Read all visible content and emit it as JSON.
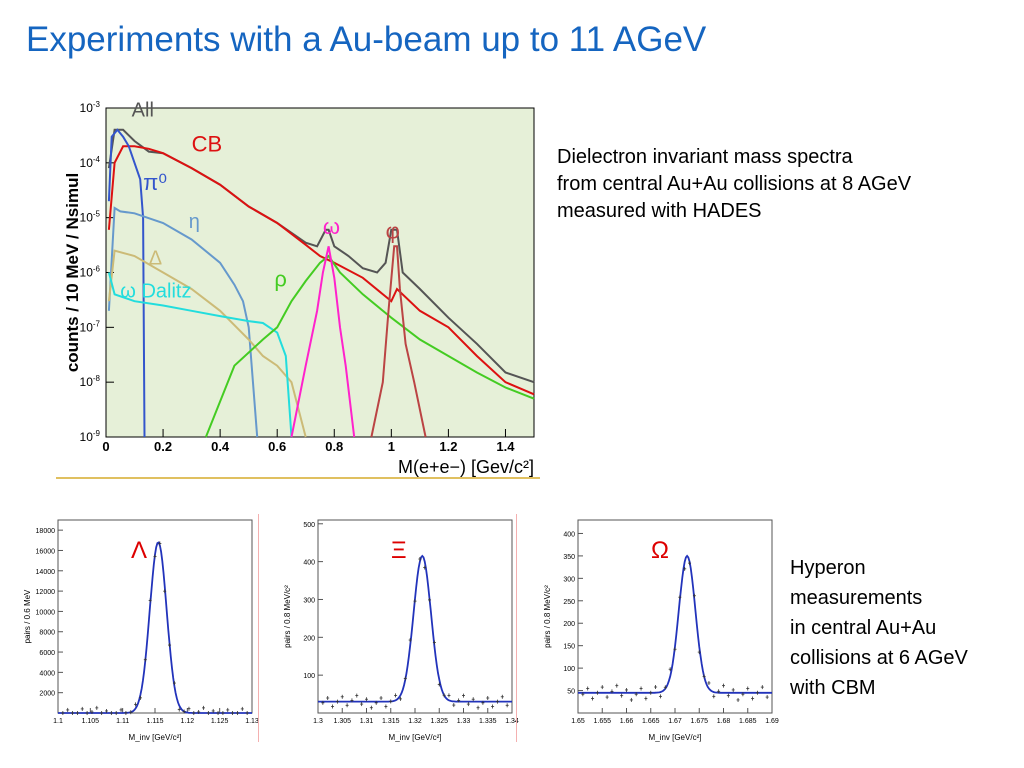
{
  "slide": {
    "title": "Experiments with a Au-beam up to  11 AGeV",
    "dielectron_caption": [
      "Dielectron invariant mass spectra",
      "from central Au+Au collisions at 8 AGeV",
      "measured with HADES"
    ],
    "hyperon_caption": [
      "Hyperon",
      "measurements",
      "in central Au+Au",
      "collisions at 6 AGeV",
      "with CBM"
    ]
  },
  "colors": {
    "title": "#1565c0",
    "hyp_line": "#2233bb",
    "hyp_label": "#dd0000"
  },
  "chart_data": [
    {
      "id": "dielectron",
      "type": "line",
      "xlabel": "M(e+e−) [Gev/c²]",
      "ylabel": "counts / 10 MeV / Nsimul",
      "xlim": [
        0,
        1.5
      ],
      "ylim": [
        1e-09,
        0.001
      ],
      "yscale": "log",
      "x_ticks": [
        "0",
        "0.2",
        "0.4",
        "0.6",
        "0.8",
        "1",
        "1.2",
        "1.4"
      ],
      "y_ticks": [
        {
          "m": "10",
          "e": "-3"
        },
        {
          "m": "10",
          "e": "-4"
        },
        {
          "m": "10",
          "e": "-5"
        },
        {
          "m": "10",
          "e": "-6"
        },
        {
          "m": "10",
          "e": "-7"
        },
        {
          "m": "10",
          "e": "-8"
        },
        {
          "m": "10",
          "e": "-9"
        }
      ],
      "labels": [
        "All",
        "CB",
        "π⁰",
        "η",
        "Δ",
        "ω Dalitz",
        "ρ",
        "ω",
        "φ"
      ],
      "series": [
        {
          "name": "All",
          "color": "#555555",
          "points": [
            [
              0.01,
              8e-05
            ],
            [
              0.03,
              0.0004
            ],
            [
              0.06,
              0.0004
            ],
            [
              0.1,
              0.00025
            ],
            [
              0.15,
              0.00016
            ],
            [
              0.2,
              0.00015
            ],
            [
              0.3,
              8e-05
            ],
            [
              0.4,
              4e-05
            ],
            [
              0.5,
              1.6e-05
            ],
            [
              0.6,
              8e-06
            ],
            [
              0.7,
              3.5e-06
            ],
            [
              0.74,
              3e-06
            ],
            [
              0.77,
              6e-06
            ],
            [
              0.78,
              6e-06
            ],
            [
              0.8,
              3e-06
            ],
            [
              0.85,
              2e-06
            ],
            [
              0.9,
              1.2e-06
            ],
            [
              0.95,
              1e-06
            ],
            [
              0.98,
              1.5e-06
            ],
            [
              1.0,
              6e-06
            ],
            [
              1.02,
              6e-06
            ],
            [
              1.04,
              1e-06
            ],
            [
              1.1,
              5e-07
            ],
            [
              1.2,
              1.5e-07
            ],
            [
              1.3,
              5e-08
            ],
            [
              1.4,
              1.5e-08
            ],
            [
              1.5,
              1e-08
            ]
          ]
        },
        {
          "name": "CB",
          "color": "#dd1111",
          "points": [
            [
              0.01,
              6e-06
            ],
            [
              0.03,
              0.0001
            ],
            [
              0.06,
              0.0002
            ],
            [
              0.1,
              0.0002
            ],
            [
              0.15,
              0.00018
            ],
            [
              0.2,
              0.00015
            ],
            [
              0.3,
              8e-05
            ],
            [
              0.4,
              4e-05
            ],
            [
              0.5,
              1.6e-05
            ],
            [
              0.6,
              8e-06
            ],
            [
              0.7,
              3.2e-06
            ],
            [
              0.75,
              2e-06
            ],
            [
              0.8,
              1.5e-06
            ],
            [
              0.9,
              8e-07
            ],
            [
              1.0,
              3e-07
            ],
            [
              1.02,
              5e-07
            ],
            [
              1.1,
              2e-07
            ],
            [
              1.2,
              1e-07
            ],
            [
              1.3,
              3e-08
            ],
            [
              1.4,
              1e-08
            ],
            [
              1.5,
              6e-09
            ]
          ]
        },
        {
          "name": "π⁰",
          "color": "#3355cc",
          "points": [
            [
              0.01,
              2e-05
            ],
            [
              0.02,
              0.0003
            ],
            [
              0.04,
              0.0004
            ],
            [
              0.06,
              0.0003
            ],
            [
              0.08,
              0.0002
            ],
            [
              0.1,
              0.0001
            ],
            [
              0.12,
              5e-05
            ],
            [
              0.13,
              1e-05
            ],
            [
              0.135,
              1e-09
            ]
          ]
        },
        {
          "name": "η",
          "color": "#6699cc",
          "points": [
            [
              0.01,
              2e-07
            ],
            [
              0.03,
              1.5e-05
            ],
            [
              0.05,
              1.3e-05
            ],
            [
              0.1,
              1.2e-05
            ],
            [
              0.2,
              8e-06
            ],
            [
              0.3,
              4e-06
            ],
            [
              0.4,
              1.5e-06
            ],
            [
              0.45,
              6e-07
            ],
            [
              0.48,
              3e-07
            ],
            [
              0.5,
              1e-07
            ],
            [
              0.53,
              1e-09
            ]
          ]
        },
        {
          "name": "Δ",
          "color": "#ccbb77",
          "points": [
            [
              0.01,
              3e-07
            ],
            [
              0.03,
              2.5e-06
            ],
            [
              0.1,
              2e-06
            ],
            [
              0.2,
              1e-06
            ],
            [
              0.3,
              5e-07
            ],
            [
              0.4,
              2e-07
            ],
            [
              0.5,
              6e-08
            ],
            [
              0.55,
              3e-08
            ],
            [
              0.6,
              2e-08
            ],
            [
              0.65,
              1e-08
            ],
            [
              0.7,
              1e-09
            ]
          ]
        },
        {
          "name": "ω Dalitz",
          "color": "#22dddd",
          "points": [
            [
              0.01,
              1e-06
            ],
            [
              0.03,
              4e-07
            ],
            [
              0.1,
              3e-07
            ],
            [
              0.2,
              2.5e-07
            ],
            [
              0.3,
              2e-07
            ],
            [
              0.4,
              1.6e-07
            ],
            [
              0.5,
              1.3e-07
            ],
            [
              0.55,
              1.2e-07
            ],
            [
              0.6,
              8e-08
            ],
            [
              0.63,
              3e-08
            ],
            [
              0.65,
              1e-09
            ]
          ]
        },
        {
          "name": "ρ",
          "color": "#44cc22",
          "points": [
            [
              0.35,
              1e-09
            ],
            [
              0.45,
              2e-08
            ],
            [
              0.55,
              6e-08
            ],
            [
              0.6,
              1e-07
            ],
            [
              0.65,
              3e-07
            ],
            [
              0.7,
              7e-07
            ],
            [
              0.75,
              1.5e-06
            ],
            [
              0.78,
              2e-06
            ],
            [
              0.82,
              1e-06
            ],
            [
              0.9,
              4e-07
            ],
            [
              1.0,
              1.5e-07
            ],
            [
              1.1,
              6e-08
            ],
            [
              1.2,
              3e-08
            ],
            [
              1.3,
              1.5e-08
            ],
            [
              1.4,
              8e-09
            ],
            [
              1.5,
              5e-09
            ]
          ]
        },
        {
          "name": "ω",
          "color": "#ff22cc",
          "points": [
            [
              0.65,
              1e-09
            ],
            [
              0.7,
              2e-08
            ],
            [
              0.74,
              2e-07
            ],
            [
              0.76,
              1e-06
            ],
            [
              0.78,
              3e-06
            ],
            [
              0.8,
              8e-07
            ],
            [
              0.82,
              1e-07
            ],
            [
              0.84,
              2e-08
            ],
            [
              0.87,
              1e-09
            ]
          ]
        },
        {
          "name": "φ",
          "color": "#bb4444",
          "points": [
            [
              0.93,
              1e-09
            ],
            [
              0.97,
              1e-08
            ],
            [
              0.99,
              2e-07
            ],
            [
              1.01,
              3e-06
            ],
            [
              1.02,
              3e-06
            ],
            [
              1.03,
              5e-07
            ],
            [
              1.05,
              5e-08
            ],
            [
              1.08,
              1e-08
            ],
            [
              1.12,
              1e-09
            ]
          ]
        }
      ]
    },
    {
      "id": "lambda",
      "type": "line",
      "label": "Λ",
      "xlabel": "M_inv [GeV/c²]",
      "ylabel": "pairs / 0.6 MeV",
      "xlim": [
        1.1,
        1.13
      ],
      "ylim": [
        0,
        19000
      ],
      "x_ticks": [
        "1.1",
        "1.105",
        "1.11",
        "1.115",
        "1.12",
        "1.125",
        "1.13"
      ],
      "y_ticks": [
        "2000",
        "4000",
        "6000",
        "8000",
        "10000",
        "12000",
        "14000",
        "16000",
        "18000"
      ],
      "peak": {
        "mean": 1.1155,
        "sigma": 0.0013,
        "height": 16800,
        "baseline": 0
      }
    },
    {
      "id": "xi",
      "type": "line",
      "label": "Ξ",
      "xlabel": "M_inv [GeV/c²]",
      "ylabel": "pairs / 0.8 MeV/c²",
      "xlim": [
        1.3,
        1.34
      ],
      "ylim": [
        0,
        510
      ],
      "x_ticks": [
        "1.3",
        "1.305",
        "1.31",
        "1.315",
        "1.32",
        "1.325",
        "1.33",
        "1.335",
        "1.34"
      ],
      "y_ticks": [
        "100",
        "200",
        "300",
        "400",
        "500"
      ],
      "peak": {
        "mean": 1.3215,
        "sigma": 0.0018,
        "height": 385,
        "baseline": 30
      }
    },
    {
      "id": "omega",
      "type": "line",
      "label": "Ω",
      "xlabel": "M_inv [GeV/c²]",
      "ylabel": "pairs / 0.8 MeV/c²",
      "xlim": [
        1.65,
        1.69
      ],
      "ylim": [
        0,
        430
      ],
      "x_ticks": [
        "1.65",
        "1.655",
        "1.66",
        "1.665",
        "1.67",
        "1.675",
        "1.68",
        "1.685",
        "1.69"
      ],
      "y_ticks": [
        "50",
        "100",
        "150",
        "200",
        "250",
        "300",
        "350",
        "400"
      ],
      "peak": {
        "mean": 1.6725,
        "sigma": 0.0017,
        "height": 305,
        "baseline": 45
      }
    }
  ]
}
